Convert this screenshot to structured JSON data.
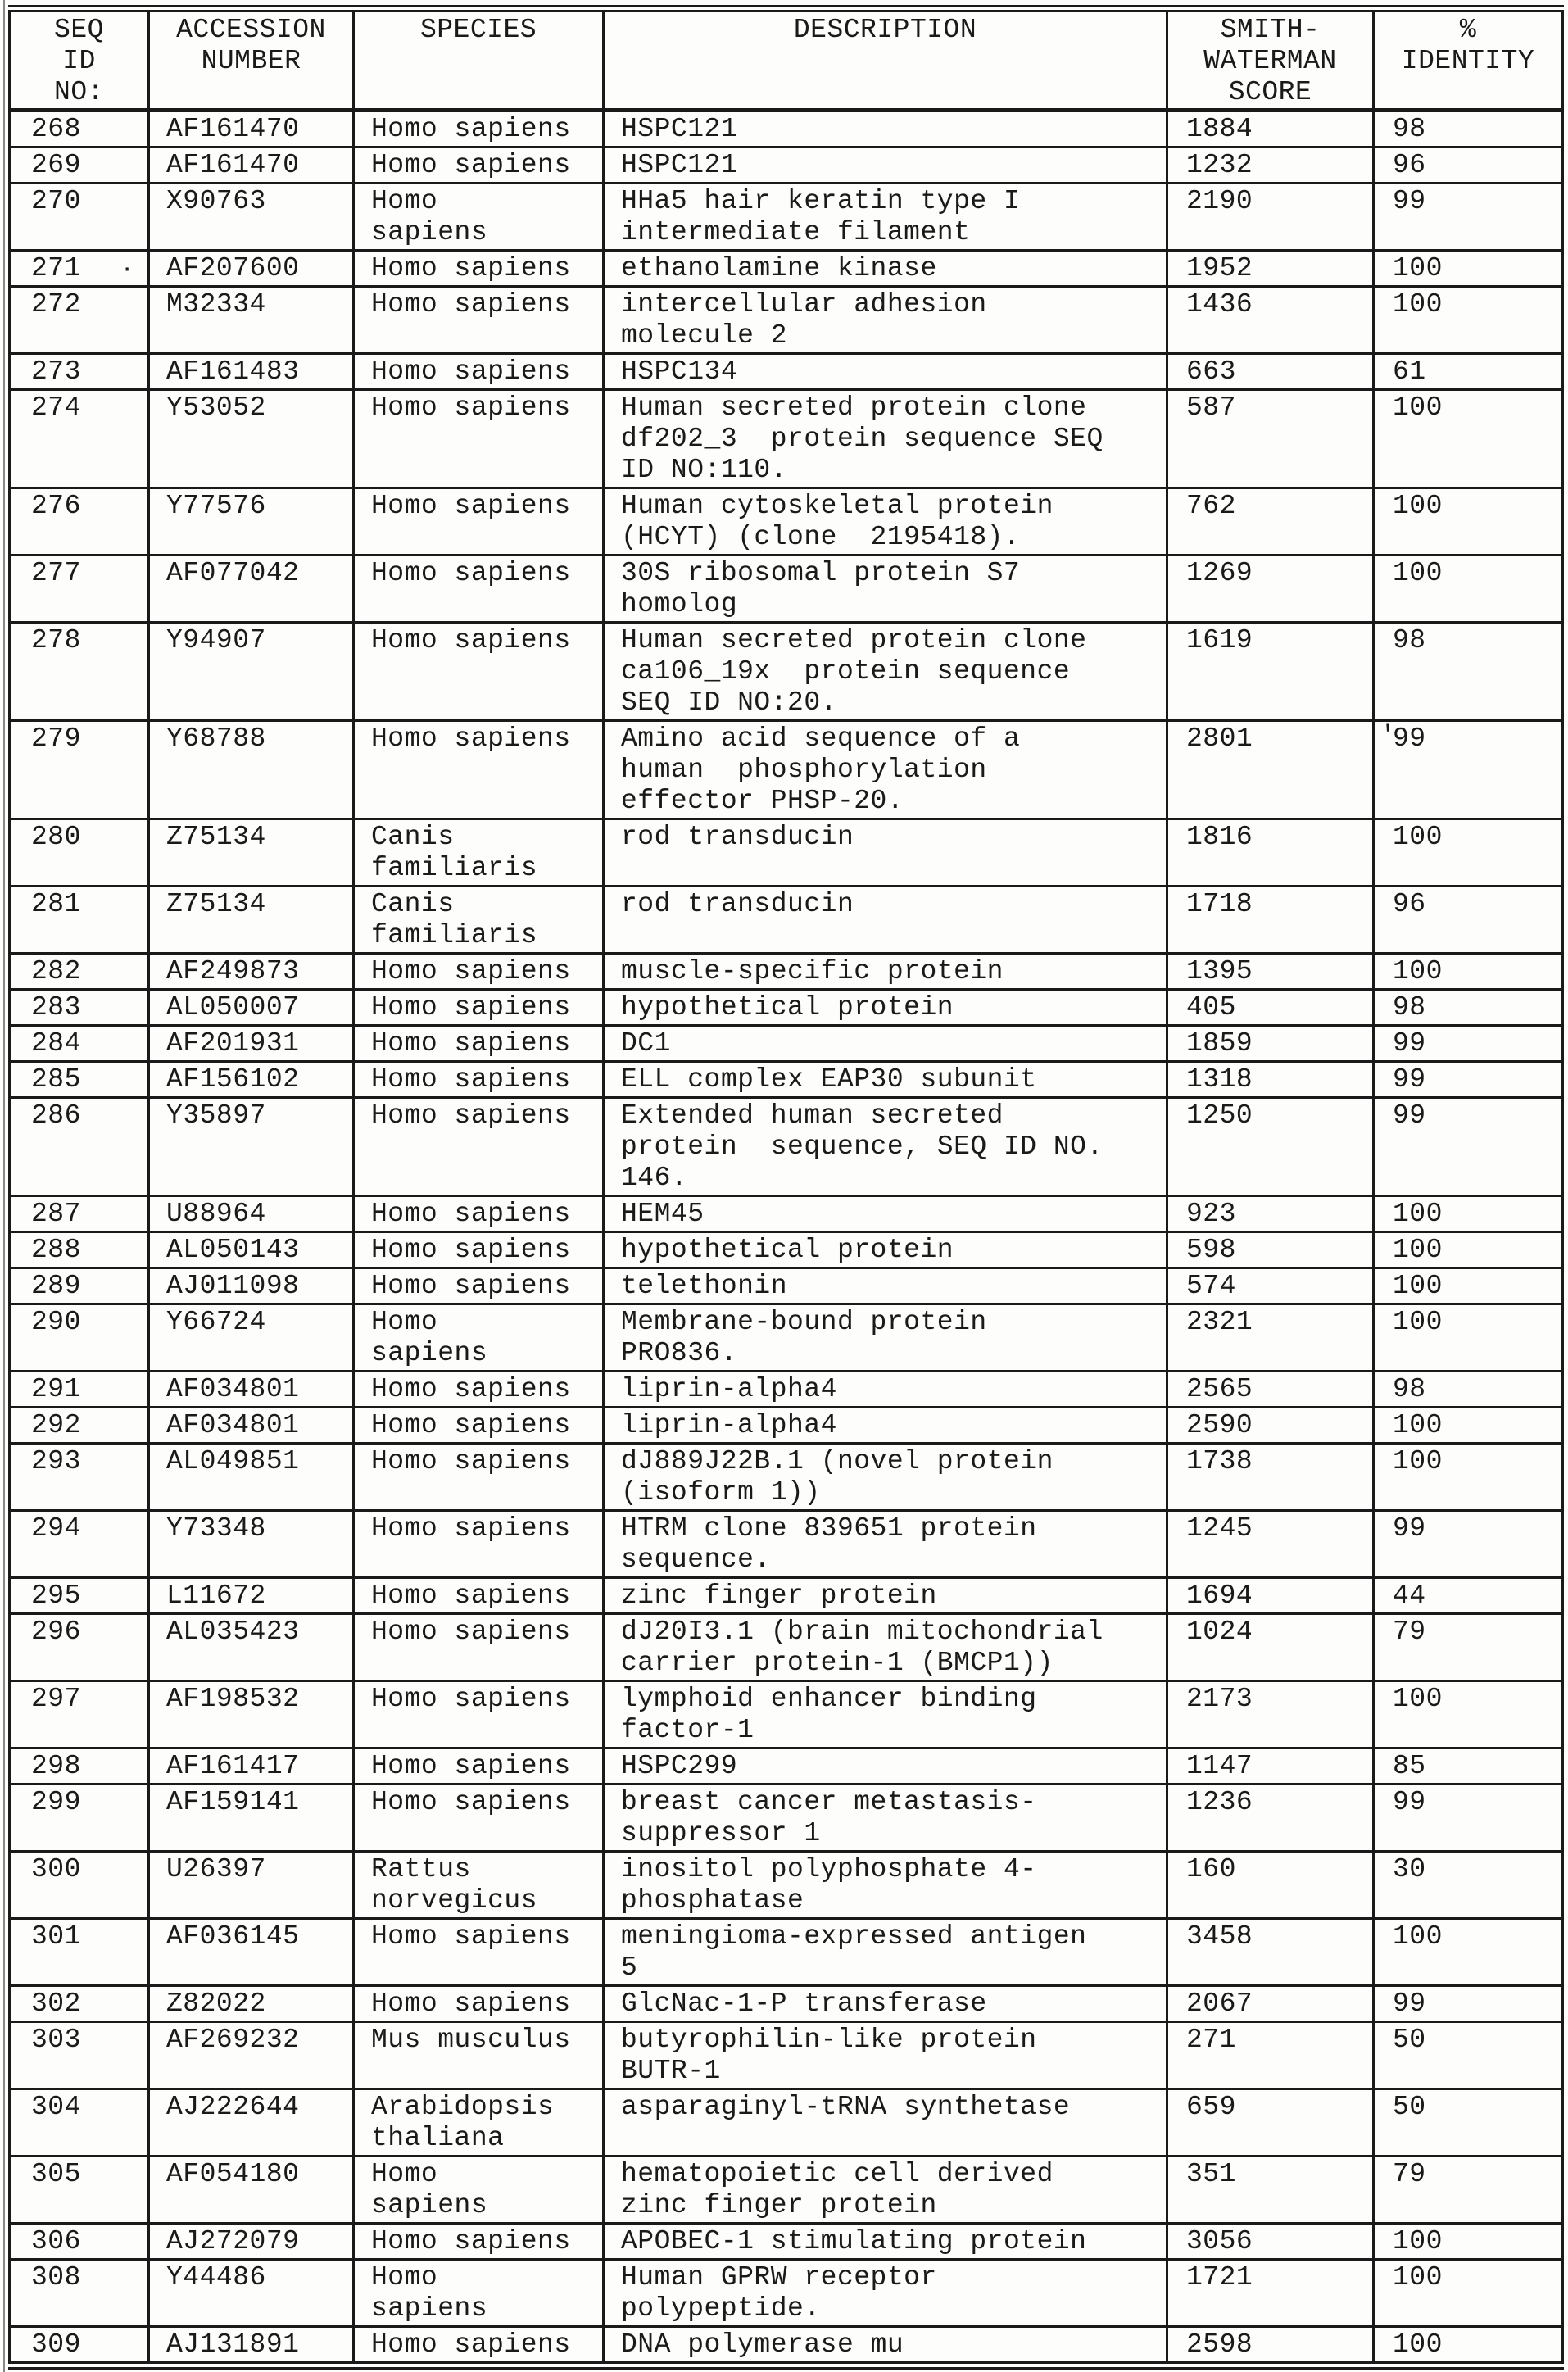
{
  "colors": {
    "ink": "#1a1a1a",
    "paper": "#fdfdfb"
  },
  "table": {
    "headers": [
      {
        "id": "seq",
        "label": "SEQ\nID\nNO:"
      },
      {
        "id": "accession",
        "label": "ACCESSION\nNUMBER"
      },
      {
        "id": "species",
        "label": "SPECIES"
      },
      {
        "id": "description",
        "label": "DESCRIPTION"
      },
      {
        "id": "score",
        "label": "SMITH-\nWATERMAN\nSCORE"
      },
      {
        "id": "identity",
        "label": "%\nIDENTITY"
      }
    ],
    "rows": [
      {
        "seq": "268",
        "acc": "AF161470",
        "species": "Homo sapiens",
        "desc": "HSPC121",
        "score": "1884",
        "identity": "98"
      },
      {
        "seq": "269",
        "acc": "AF161470",
        "species": "Homo sapiens",
        "desc": "HSPC121",
        "score": "1232",
        "identity": "96"
      },
      {
        "seq": "270",
        "acc": "X90763",
        "species": "Homo\nsapiens",
        "desc": "HHa5 hair keratin type I\nintermediate filament",
        "score": "2190",
        "identity": "99"
      },
      {
        "seq": "271",
        "acc": "AF207600",
        "species": "Homo sapiens",
        "desc": "ethanolamine kinase",
        "score": "1952",
        "identity": "100",
        "seq_mark": "·"
      },
      {
        "seq": "272",
        "acc": "M32334",
        "species": "Homo sapiens",
        "desc": "intercellular adhesion\nmolecule 2",
        "score": "1436",
        "identity": "100"
      },
      {
        "seq": "273",
        "acc": "AF161483",
        "species": "Homo sapiens",
        "desc": "HSPC134",
        "score": "663",
        "identity": "61"
      },
      {
        "seq": "274",
        "acc": "Y53052",
        "species": "Homo sapiens",
        "desc": "Human secreted protein clone\ndf202_3  protein sequence SEQ\nID NO:110.",
        "score": "587",
        "identity": "100"
      },
      {
        "seq": "276",
        "acc": "Y77576",
        "species": "Homo sapiens",
        "desc": "Human cytoskeletal protein\n(HCYT) (clone  2195418).",
        "score": "762",
        "identity": "100"
      },
      {
        "seq": "277",
        "acc": "AF077042",
        "species": "Homo sapiens",
        "desc": "30S ribosomal protein S7\nhomolog",
        "score": "1269",
        "identity": "100"
      },
      {
        "seq": "278",
        "acc": "Y94907",
        "species": "Homo sapiens",
        "desc": "Human secreted protein clone\nca106_19x  protein sequence\nSEQ ID NO:20.",
        "score": "1619",
        "identity": "98"
      },
      {
        "seq": "279",
        "acc": "Y68788",
        "species": "Homo sapiens",
        "desc": "Amino acid sequence of a\nhuman  phosphorylation\neffector PHSP-20.",
        "score": "2801",
        "identity": "99",
        "identity_mark": "'"
      },
      {
        "seq": "280",
        "acc": "Z75134",
        "species": "Canis\nfamiliaris",
        "desc": "rod transducin",
        "score": "1816",
        "identity": "100"
      },
      {
        "seq": "281",
        "acc": "Z75134",
        "species": "Canis\nfamiliaris",
        "desc": "rod transducin",
        "score": "1718",
        "identity": "96"
      },
      {
        "seq": "282",
        "acc": "AF249873",
        "species": "Homo sapiens",
        "desc": "muscle-specific protein",
        "score": "1395",
        "identity": "100"
      },
      {
        "seq": "283",
        "acc": "AL050007",
        "species": "Homo sapiens",
        "desc": "hypothetical protein",
        "score": "405",
        "identity": "98"
      },
      {
        "seq": "284",
        "acc": "AF201931",
        "species": "Homo sapiens",
        "desc": "DC1",
        "score": "1859",
        "identity": "99"
      },
      {
        "seq": "285",
        "acc": "AF156102",
        "species": "Homo sapiens",
        "desc": "ELL complex EAP30 subunit",
        "score": "1318",
        "identity": "99"
      },
      {
        "seq": "286",
        "acc": "Y35897",
        "species": "Homo sapiens",
        "desc": "Extended human secreted\nprotein  sequence, SEQ ID NO.\n146.",
        "score": "1250",
        "identity": "99"
      },
      {
        "seq": "287",
        "acc": "U88964",
        "species": "Homo sapiens",
        "desc": "HEM45",
        "score": "923",
        "identity": "100"
      },
      {
        "seq": "288",
        "acc": "AL050143",
        "species": "Homo sapiens",
        "desc": "hypothetical protein",
        "score": "598",
        "identity": "100"
      },
      {
        "seq": "289",
        "acc": "AJ011098",
        "species": "Homo sapiens",
        "desc": "telethonin",
        "score": "574",
        "identity": "100"
      },
      {
        "seq": "290",
        "acc": "Y66724",
        "species": "Homo\nsapiens",
        "desc": "Membrane-bound protein\nPRO836.",
        "score": "2321",
        "identity": "100"
      },
      {
        "seq": "291",
        "acc": "AF034801",
        "species": "Homo sapiens",
        "desc": "liprin-alpha4",
        "score": "2565",
        "identity": "98"
      },
      {
        "seq": "292",
        "acc": "AF034801",
        "species": "Homo sapiens",
        "desc": "liprin-alpha4",
        "score": "2590",
        "identity": "100"
      },
      {
        "seq": "293",
        "acc": "AL049851",
        "species": "Homo sapiens",
        "desc": "dJ889J22B.1 (novel protein\n(isoform 1))",
        "score": "1738",
        "identity": "100"
      },
      {
        "seq": "294",
        "acc": "Y73348",
        "species": "Homo sapiens",
        "desc": "HTRM clone 839651 protein\nsequence.",
        "score": "1245",
        "identity": "99"
      },
      {
        "seq": "295",
        "acc": "L11672",
        "species": "Homo sapiens",
        "desc": "zinc finger protein",
        "score": "1694",
        "identity": "44"
      },
      {
        "seq": "296",
        "acc": "AL035423",
        "species": "Homo sapiens",
        "desc": "dJ20I3.1 (brain mitochondrial\ncarrier protein-1 (BMCP1))",
        "score": "1024",
        "identity": "79"
      },
      {
        "seq": "297",
        "acc": "AF198532",
        "species": "Homo sapiens",
        "desc": "lymphoid enhancer binding\nfactor-1",
        "score": "2173",
        "identity": "100"
      },
      {
        "seq": "298",
        "acc": "AF161417",
        "species": "Homo sapiens",
        "desc": "HSPC299",
        "score": "1147",
        "identity": "85"
      },
      {
        "seq": "299",
        "acc": "AF159141",
        "species": "Homo sapiens",
        "desc": "breast cancer metastasis-\nsuppressor 1",
        "score": "1236",
        "identity": "99"
      },
      {
        "seq": "300",
        "acc": "U26397",
        "species": "Rattus\nnorvegicus",
        "desc": "inositol polyphosphate 4-\nphosphatase",
        "score": "160",
        "identity": "30"
      },
      {
        "seq": "301",
        "acc": "AF036145",
        "species": "Homo sapiens",
        "desc": "meningioma-expressed antigen\n5",
        "score": "3458",
        "identity": "100"
      },
      {
        "seq": "302",
        "acc": "Z82022",
        "species": "Homo sapiens",
        "desc": "GlcNac-1-P transferase",
        "score": "2067",
        "identity": "99"
      },
      {
        "seq": "303",
        "acc": "AF269232",
        "species": "Mus musculus",
        "desc": "butyrophilin-like protein\nBUTR-1",
        "score": "271",
        "identity": "50"
      },
      {
        "seq": "304",
        "acc": "AJ222644",
        "species": "Arabidopsis\nthaliana",
        "desc": "asparaginyl-tRNA synthetase",
        "score": "659",
        "identity": "50"
      },
      {
        "seq": "305",
        "acc": "AF054180",
        "species": "Homo\nsapiens",
        "desc": "hematopoietic cell derived\nzinc finger protein",
        "score": "351",
        "identity": "79"
      },
      {
        "seq": "306",
        "acc": "AJ272079",
        "species": "Homo sapiens",
        "desc": "APOBEC-1 stimulating protein",
        "score": "3056",
        "identity": "100"
      },
      {
        "seq": "308",
        "acc": "Y44486",
        "species": "Homo\nsapiens",
        "desc": "Human GPRW receptor\npolypeptide.",
        "score": "1721",
        "identity": "100"
      },
      {
        "seq": "309",
        "acc": "AJ131891",
        "species": "Homo sapiens",
        "desc": "DNA polymerase mu",
        "score": "2598",
        "identity": "100"
      }
    ]
  }
}
